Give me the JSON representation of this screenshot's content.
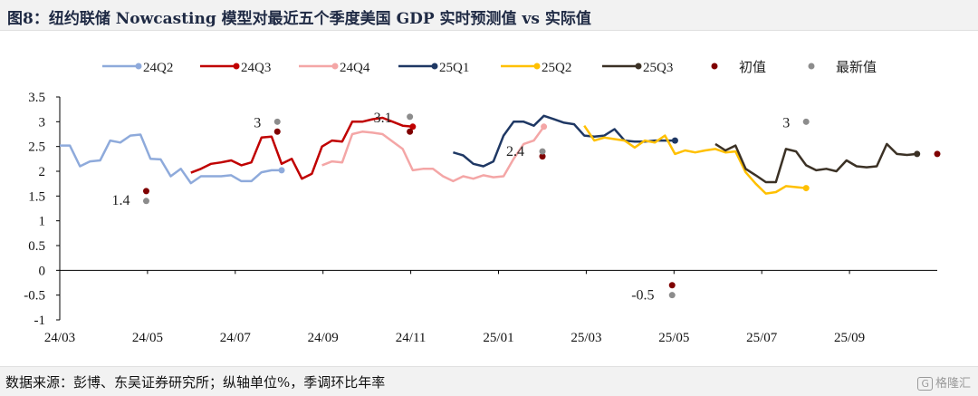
{
  "title": "图8：纽约联储 Nowcasting 模型对最近五个季度美国 GDP 实时预测值 vs 实际值",
  "footer": "数据来源：彭博、东吴证券研究所；纵轴单位%，季调环比年率",
  "watermark": "格隆汇",
  "chart_data": {
    "type": "line",
    "ylim": [
      -1,
      3.5
    ],
    "yticks": [
      "3.5",
      "3",
      "2.5",
      "2",
      "1.5",
      "1",
      "0.5",
      "0",
      "-0.5",
      "-1"
    ],
    "xticks": [
      "24/03",
      "24/05",
      "24/07",
      "24/09",
      "24/11",
      "25/01",
      "25/03",
      "25/05",
      "25/07",
      "25/09"
    ],
    "x_domain": [
      "2024-03-01",
      "2025-10-31"
    ],
    "legend_position": "top",
    "series": [
      {
        "name": "24Q2",
        "color": "#8eaadb",
        "x": [
          "2024-03-01",
          "2024-03-08",
          "2024-03-15",
          "2024-03-22",
          "2024-03-29",
          "2024-04-05",
          "2024-04-12",
          "2024-04-19",
          "2024-04-26",
          "2024-05-03",
          "2024-05-10",
          "2024-05-17",
          "2024-05-24",
          "2024-05-31",
          "2024-06-07",
          "2024-06-14",
          "2024-06-21",
          "2024-06-28",
          "2024-07-05",
          "2024-07-12",
          "2024-07-19",
          "2024-07-26",
          "2024-08-02"
        ],
        "y": [
          2.52,
          2.52,
          2.1,
          2.2,
          2.22,
          2.62,
          2.58,
          2.72,
          2.74,
          2.25,
          2.24,
          1.9,
          2.05,
          1.76,
          1.9,
          1.9,
          1.9,
          1.92,
          1.8,
          1.8,
          1.98,
          2.02,
          2.02
        ]
      },
      {
        "name": "24Q3",
        "color": "#c00000",
        "x": [
          "2024-05-31",
          "2024-06-07",
          "2024-06-14",
          "2024-06-21",
          "2024-06-28",
          "2024-07-05",
          "2024-07-12",
          "2024-07-19",
          "2024-07-26",
          "2024-08-02",
          "2024-08-09",
          "2024-08-16",
          "2024-08-23",
          "2024-08-30",
          "2024-09-06",
          "2024-09-13",
          "2024-09-20",
          "2024-09-27",
          "2024-10-04",
          "2024-10-11",
          "2024-10-18",
          "2024-10-25",
          "2024-11-01"
        ],
        "y": [
          1.97,
          2.05,
          2.15,
          2.18,
          2.22,
          2.12,
          2.18,
          2.68,
          2.7,
          2.15,
          2.25,
          1.85,
          1.95,
          2.5,
          2.62,
          2.6,
          3.0,
          3.0,
          3.05,
          3.08,
          3.0,
          2.92,
          2.9
        ]
      },
      {
        "name": "24Q4",
        "color": "#f4a6a6",
        "x": [
          "2024-08-30",
          "2024-09-06",
          "2024-09-13",
          "2024-09-20",
          "2024-09-27",
          "2024-10-04",
          "2024-10-11",
          "2024-10-18",
          "2024-10-25",
          "2024-11-01",
          "2024-11-08",
          "2024-11-15",
          "2024-11-22",
          "2024-11-29",
          "2024-12-06",
          "2024-12-13",
          "2024-12-20",
          "2024-12-27",
          "2025-01-03",
          "2025-01-10",
          "2025-01-17",
          "2025-01-24",
          "2025-01-31"
        ],
        "y": [
          2.12,
          2.2,
          2.18,
          2.75,
          2.8,
          2.78,
          2.75,
          2.6,
          2.45,
          2.02,
          2.05,
          2.05,
          1.9,
          1.8,
          1.9,
          1.85,
          1.92,
          1.88,
          1.9,
          2.25,
          2.55,
          2.62,
          2.9
        ]
      },
      {
        "name": "25Q1",
        "color": "#1f3864",
        "x": [
          "2024-11-29",
          "2024-12-06",
          "2024-12-13",
          "2024-12-20",
          "2024-12-27",
          "2025-01-03",
          "2025-01-10",
          "2025-01-17",
          "2025-01-24",
          "2025-01-31",
          "2025-02-07",
          "2025-02-14",
          "2025-02-21",
          "2025-02-28",
          "2025-03-07",
          "2025-03-14",
          "2025-03-21",
          "2025-03-28",
          "2025-04-04",
          "2025-04-11",
          "2025-04-18",
          "2025-04-25",
          "2025-05-02"
        ],
        "y": [
          2.38,
          2.32,
          2.15,
          2.1,
          2.2,
          2.72,
          3.0,
          3.0,
          2.92,
          3.12,
          3.05,
          2.98,
          2.95,
          2.72,
          2.7,
          2.72,
          2.85,
          2.62,
          2.6,
          2.6,
          2.62,
          2.62,
          2.62
        ]
      },
      {
        "name": "25Q2",
        "color": "#ffc000",
        "x": [
          "2025-02-28",
          "2025-03-07",
          "2025-03-14",
          "2025-03-21",
          "2025-03-28",
          "2025-04-04",
          "2025-04-11",
          "2025-04-18",
          "2025-04-25",
          "2025-05-02",
          "2025-05-09",
          "2025-05-16",
          "2025-05-23",
          "2025-05-30",
          "2025-06-06",
          "2025-06-13",
          "2025-06-20",
          "2025-06-27",
          "2025-07-04",
          "2025-07-11",
          "2025-07-18",
          "2025-07-25",
          "2025-08-01"
        ],
        "y": [
          2.92,
          2.62,
          2.68,
          2.65,
          2.62,
          2.48,
          2.62,
          2.58,
          2.72,
          2.35,
          2.42,
          2.38,
          2.42,
          2.45,
          2.38,
          2.4,
          1.98,
          1.75,
          1.55,
          1.58,
          1.7,
          1.68,
          1.66
        ]
      },
      {
        "name": "25Q3",
        "color": "#3b3125",
        "x": [
          "2025-05-30",
          "2025-06-06",
          "2025-06-13",
          "2025-06-20",
          "2025-06-27",
          "2025-07-04",
          "2025-07-11",
          "2025-07-18",
          "2025-07-25",
          "2025-08-01",
          "2025-08-08",
          "2025-08-15",
          "2025-08-22",
          "2025-08-29",
          "2025-09-05",
          "2025-09-12",
          "2025-09-19",
          "2025-09-26",
          "2025-10-03",
          "2025-10-10",
          "2025-10-17"
        ],
        "y": [
          2.55,
          2.42,
          2.52,
          2.05,
          1.92,
          1.78,
          1.78,
          2.45,
          2.4,
          2.12,
          2.02,
          2.05,
          2.0,
          2.22,
          2.1,
          2.08,
          2.1,
          2.55,
          2.35,
          2.33,
          2.35
        ]
      }
    ],
    "markers": [
      {
        "name": "初值",
        "color": "#7f0000",
        "points": [
          {
            "x": "2024-04-30",
            "y": 1.6
          },
          {
            "x": "2024-07-30",
            "y": 2.8
          },
          {
            "x": "2024-10-30",
            "y": 2.8
          },
          {
            "x": "2025-01-30",
            "y": 2.3
          },
          {
            "x": "2025-04-30",
            "y": -0.3
          },
          {
            "x": "2025-10-31",
            "y": 2.35
          }
        ]
      },
      {
        "name": "最新值",
        "color": "#8c8c8c",
        "points": [
          {
            "x": "2024-04-30",
            "y": 1.4
          },
          {
            "x": "2024-07-30",
            "y": 3.0
          },
          {
            "x": "2024-10-30",
            "y": 3.1
          },
          {
            "x": "2025-01-30",
            "y": 2.4
          },
          {
            "x": "2025-04-30",
            "y": -0.5
          },
          {
            "x": "2025-08-01",
            "y": 3.0
          }
        ]
      }
    ],
    "annotations": [
      {
        "text": "1.4",
        "x": "2024-04-30",
        "y": 1.4,
        "dx": -38,
        "dy": 4
      },
      {
        "text": "3",
        "x": "2024-07-30",
        "y": 3.0,
        "dx": -26,
        "dy": 6
      },
      {
        "text": "3.1",
        "x": "2024-10-30",
        "y": 3.1,
        "dx": -40,
        "dy": 6
      },
      {
        "text": "2.4",
        "x": "2025-01-30",
        "y": 2.4,
        "dx": -40,
        "dy": 5
      },
      {
        "text": "-0.5",
        "x": "2025-04-30",
        "y": -0.5,
        "dx": -45,
        "dy": 5
      },
      {
        "text": "3",
        "x": "2025-08-01",
        "y": 3.0,
        "dx": -26,
        "dy": 6
      }
    ]
  }
}
